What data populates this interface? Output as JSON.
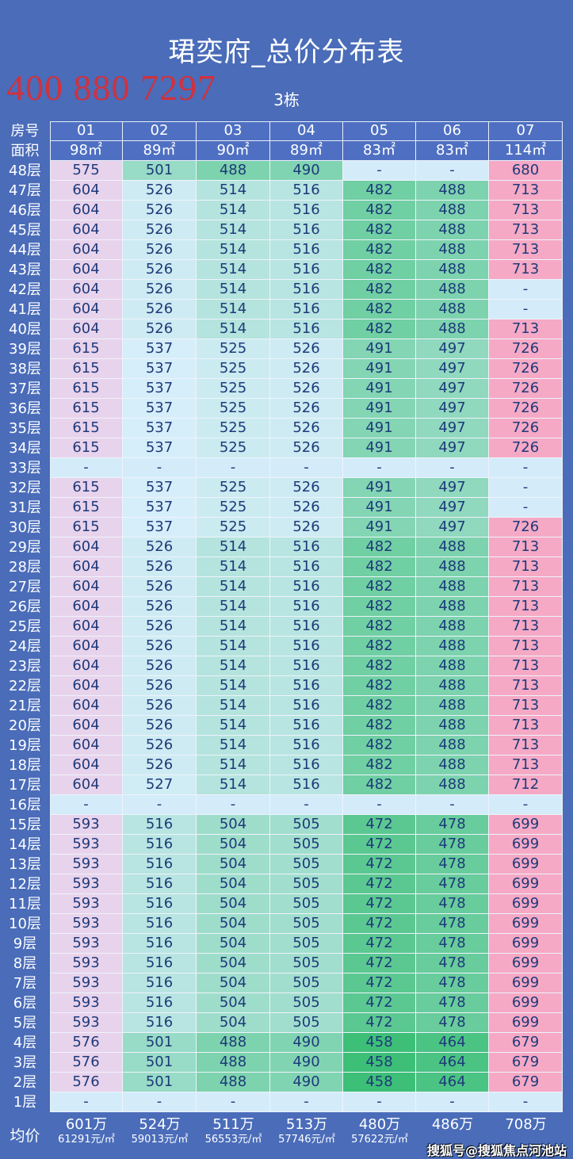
{
  "title": "珺奕府_总价分布表",
  "building": "3栋",
  "header": {
    "room_label": "房号",
    "area_label": "面积",
    "rooms": [
      "01",
      "02",
      "03",
      "04",
      "05",
      "06",
      "07"
    ],
    "areas": [
      "98㎡",
      "89㎡",
      "90㎡",
      "89㎡",
      "83㎡",
      "83㎡",
      "114㎡"
    ]
  },
  "rows": [
    {
      "floor": "48层",
      "values": [
        "575",
        "501",
        "488",
        "490",
        "-",
        "-",
        "680"
      ]
    },
    {
      "floor": "47层",
      "values": [
        "604",
        "526",
        "514",
        "516",
        "482",
        "488",
        "713"
      ]
    },
    {
      "floor": "46层",
      "values": [
        "604",
        "526",
        "514",
        "516",
        "482",
        "488",
        "713"
      ]
    },
    {
      "floor": "45层",
      "values": [
        "604",
        "526",
        "514",
        "516",
        "482",
        "488",
        "713"
      ]
    },
    {
      "floor": "44层",
      "values": [
        "604",
        "526",
        "514",
        "516",
        "482",
        "488",
        "713"
      ]
    },
    {
      "floor": "43层",
      "values": [
        "604",
        "526",
        "514",
        "516",
        "482",
        "488",
        "713"
      ]
    },
    {
      "floor": "42层",
      "values": [
        "604",
        "526",
        "514",
        "516",
        "482",
        "488",
        "-"
      ]
    },
    {
      "floor": "41层",
      "values": [
        "604",
        "526",
        "514",
        "516",
        "482",
        "488",
        "-"
      ]
    },
    {
      "floor": "40层",
      "values": [
        "604",
        "526",
        "514",
        "516",
        "482",
        "488",
        "713"
      ]
    },
    {
      "floor": "39层",
      "values": [
        "615",
        "537",
        "525",
        "526",
        "491",
        "497",
        "726"
      ]
    },
    {
      "floor": "38层",
      "values": [
        "615",
        "537",
        "525",
        "526",
        "491",
        "497",
        "726"
      ]
    },
    {
      "floor": "37层",
      "values": [
        "615",
        "537",
        "525",
        "526",
        "491",
        "497",
        "726"
      ]
    },
    {
      "floor": "36层",
      "values": [
        "615",
        "537",
        "525",
        "526",
        "491",
        "497",
        "726"
      ]
    },
    {
      "floor": "35层",
      "values": [
        "615",
        "537",
        "525",
        "526",
        "491",
        "497",
        "726"
      ]
    },
    {
      "floor": "34层",
      "values": [
        "615",
        "537",
        "525",
        "526",
        "491",
        "497",
        "726"
      ]
    },
    {
      "floor": "33层",
      "values": [
        "-",
        "-",
        "-",
        "-",
        "-",
        "-",
        "-"
      ]
    },
    {
      "floor": "32层",
      "values": [
        "615",
        "537",
        "525",
        "526",
        "491",
        "497",
        "-"
      ]
    },
    {
      "floor": "31层",
      "values": [
        "615",
        "537",
        "525",
        "526",
        "491",
        "497",
        "-"
      ]
    },
    {
      "floor": "30层",
      "values": [
        "615",
        "537",
        "525",
        "526",
        "491",
        "497",
        "726"
      ]
    },
    {
      "floor": "29层",
      "values": [
        "604",
        "526",
        "514",
        "516",
        "482",
        "488",
        "713"
      ]
    },
    {
      "floor": "28层",
      "values": [
        "604",
        "526",
        "514",
        "516",
        "482",
        "488",
        "713"
      ]
    },
    {
      "floor": "27层",
      "values": [
        "604",
        "526",
        "514",
        "516",
        "482",
        "488",
        "713"
      ]
    },
    {
      "floor": "26层",
      "values": [
        "604",
        "526",
        "514",
        "516",
        "482",
        "488",
        "713"
      ]
    },
    {
      "floor": "25层",
      "values": [
        "604",
        "526",
        "514",
        "516",
        "482",
        "488",
        "713"
      ]
    },
    {
      "floor": "24层",
      "values": [
        "604",
        "526",
        "514",
        "516",
        "482",
        "488",
        "713"
      ]
    },
    {
      "floor": "23层",
      "values": [
        "604",
        "526",
        "514",
        "516",
        "482",
        "488",
        "713"
      ]
    },
    {
      "floor": "22层",
      "values": [
        "604",
        "526",
        "514",
        "516",
        "482",
        "488",
        "713"
      ]
    },
    {
      "floor": "21层",
      "values": [
        "604",
        "526",
        "514",
        "516",
        "482",
        "488",
        "713"
      ]
    },
    {
      "floor": "20层",
      "values": [
        "604",
        "526",
        "514",
        "516",
        "482",
        "488",
        "713"
      ]
    },
    {
      "floor": "19层",
      "values": [
        "604",
        "526",
        "514",
        "516",
        "482",
        "488",
        "713"
      ]
    },
    {
      "floor": "18层",
      "values": [
        "604",
        "526",
        "514",
        "516",
        "482",
        "488",
        "713"
      ]
    },
    {
      "floor": "17层",
      "values": [
        "604",
        "527",
        "514",
        "516",
        "482",
        "488",
        "712"
      ]
    },
    {
      "floor": "16层",
      "values": [
        "-",
        "-",
        "-",
        "-",
        "-",
        "-",
        "-"
      ]
    },
    {
      "floor": "15层",
      "values": [
        "593",
        "516",
        "504",
        "505",
        "472",
        "478",
        "699"
      ]
    },
    {
      "floor": "14层",
      "values": [
        "593",
        "516",
        "504",
        "505",
        "472",
        "478",
        "699"
      ]
    },
    {
      "floor": "13层",
      "values": [
        "593",
        "516",
        "504",
        "505",
        "472",
        "478",
        "699"
      ]
    },
    {
      "floor": "12层",
      "values": [
        "593",
        "516",
        "504",
        "505",
        "472",
        "478",
        "699"
      ]
    },
    {
      "floor": "11层",
      "values": [
        "593",
        "516",
        "504",
        "505",
        "472",
        "478",
        "699"
      ]
    },
    {
      "floor": "10层",
      "values": [
        "593",
        "516",
        "504",
        "505",
        "472",
        "478",
        "699"
      ]
    },
    {
      "floor": "9层",
      "values": [
        "593",
        "516",
        "504",
        "505",
        "472",
        "478",
        "699"
      ]
    },
    {
      "floor": "8层",
      "values": [
        "593",
        "516",
        "504",
        "505",
        "472",
        "478",
        "699"
      ]
    },
    {
      "floor": "7层",
      "values": [
        "593",
        "516",
        "504",
        "505",
        "472",
        "478",
        "699"
      ]
    },
    {
      "floor": "6层",
      "values": [
        "593",
        "516",
        "504",
        "505",
        "472",
        "478",
        "699"
      ]
    },
    {
      "floor": "5层",
      "values": [
        "593",
        "516",
        "504",
        "505",
        "472",
        "478",
        "699"
      ]
    },
    {
      "floor": "4层",
      "values": [
        "576",
        "501",
        "488",
        "490",
        "458",
        "464",
        "679"
      ]
    },
    {
      "floor": "3层",
      "values": [
        "576",
        "501",
        "488",
        "490",
        "458",
        "464",
        "679"
      ]
    },
    {
      "floor": "2层",
      "values": [
        "576",
        "501",
        "488",
        "490",
        "458",
        "464",
        "679"
      ]
    },
    {
      "floor": "1层",
      "values": [
        "-",
        "-",
        "-",
        "-",
        "-",
        "-",
        "-"
      ]
    }
  ],
  "average": {
    "label": "均价",
    "totals": [
      "601万",
      "524万",
      "511万",
      "513万",
      "480万",
      "486万",
      "708万"
    ],
    "unit_prices": [
      "61291元/㎡",
      "59013元/㎡",
      "56553元/㎡",
      "57746元/㎡",
      "57622元/㎡",
      "",
      ""
    ]
  },
  "watermark_phone": "400 880 7297",
  "source_watermark": "搜狐号@搜狐焦点河池站",
  "colors": {
    "background": "#4a6cb9",
    "header": "#4f70c2",
    "col01": "#e8d3ec",
    "col07": "#f5a9c5",
    "empty": "#d4ecfa",
    "green_low": "#3dbf78",
    "blue_high": "#d6eefa"
  }
}
